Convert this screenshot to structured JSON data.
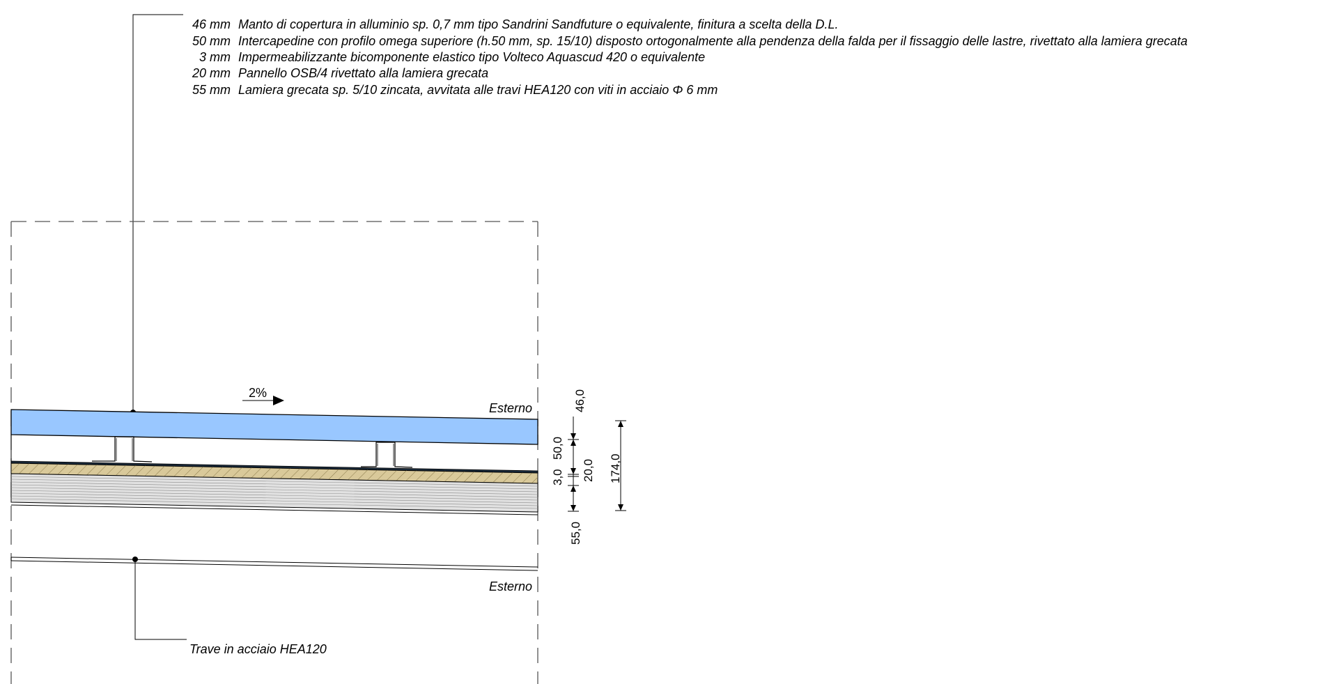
{
  "layers": [
    {
      "thickness": "46 mm",
      "description": "Manto di copertura in alluminio sp. 0,7 mm tipo Sandrini Sandfuture o equivalente, finitura a scelta della D.L."
    },
    {
      "thickness": "50 mm",
      "description": "Intercapedine con profilo omega superiore (h.50 mm, sp. 15/10) disposto ortogonalmente alla pendenza della falda per il fissaggio delle lastre, rivettato alla lamiera grecata"
    },
    {
      "thickness": "3 mm",
      "description": "Impermeabilizzante bicomponente elastico tipo Volteco Aquascud 420 o equivalente"
    },
    {
      "thickness": "20 mm",
      "description": "Pannello OSB/4  rivettato alla lamiera grecata"
    },
    {
      "thickness": "55 mm",
      "description": "Lamiera grecata sp. 5/10 zincata, avvitata alle travi HEA120 con viti in acciaio Φ 6 mm"
    }
  ],
  "slope_label": "2%",
  "exterior_label_top": "Esterno",
  "exterior_label_bottom": "Esterno",
  "beam_label": "Trave in acciaio HEA120",
  "dimensions": {
    "d46": "46,0",
    "d50": "50,0",
    "d3": "3,0",
    "d20": "20,0",
    "d55": "55,0",
    "total": "174,0"
  },
  "colors": {
    "roofing": "#99c7ff",
    "osb": "#d9c99a",
    "deck": "#d6d6d6",
    "line": "#000000",
    "dashed": "#555555"
  }
}
